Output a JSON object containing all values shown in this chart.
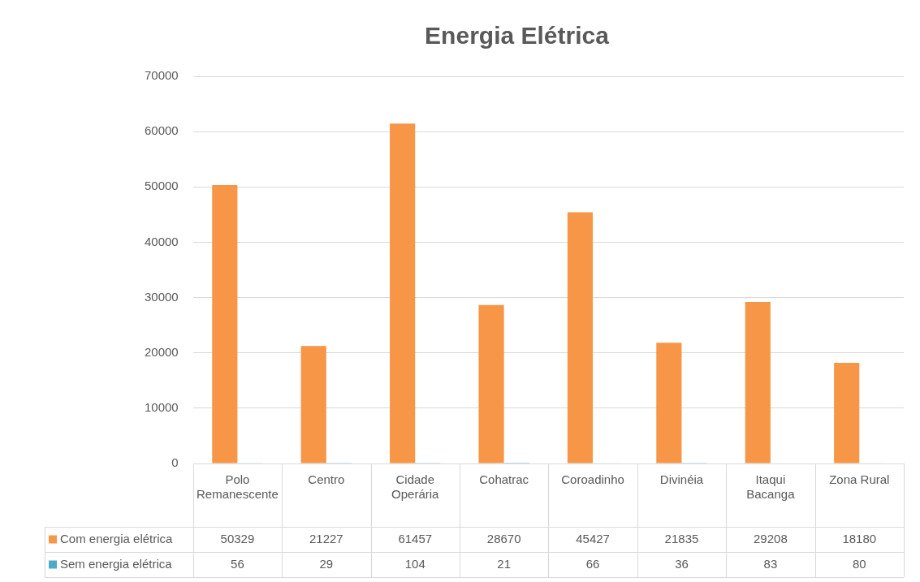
{
  "chart_data": {
    "type": "bar",
    "title": "Energia Elétrica",
    "categories": [
      "Polo Remanescente",
      "Centro",
      "Cidade Operária",
      "Cohatrac",
      "Coroadinho",
      "Divinéia",
      "Itaqui Bacanga",
      "Zona Rural"
    ],
    "series": [
      {
        "name": "Com energia elétrica",
        "color": "#f79646",
        "values": [
          50329,
          21227,
          61457,
          28670,
          45427,
          21835,
          29208,
          18180
        ]
      },
      {
        "name": "Sem energia elétrica",
        "color": "#4bacc6",
        "values": [
          56,
          29,
          104,
          21,
          66,
          36,
          83,
          80
        ]
      }
    ],
    "ylim": [
      0,
      70000
    ],
    "yticks": [
      0,
      10000,
      20000,
      30000,
      40000,
      50000,
      60000,
      70000
    ],
    "grid": "y",
    "legend": "bottom",
    "data_labels": true
  }
}
